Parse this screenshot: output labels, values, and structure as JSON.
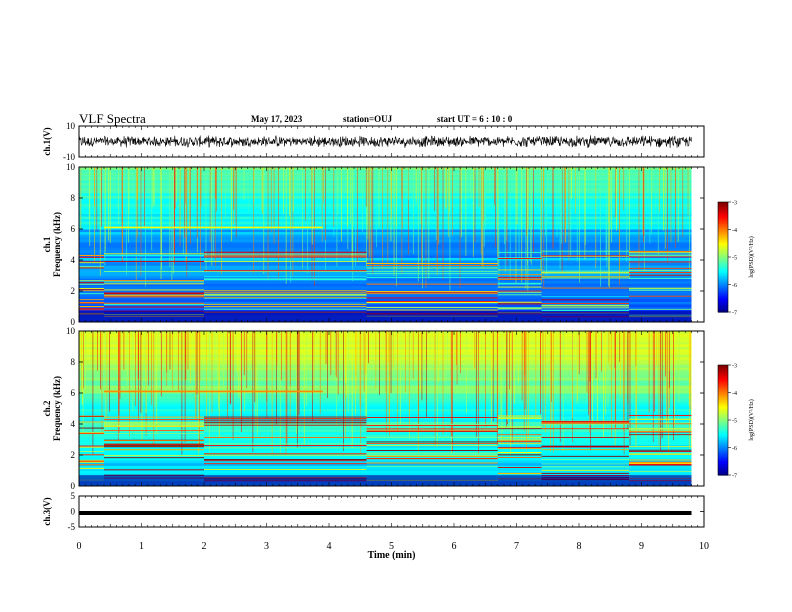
{
  "header": {
    "title": "VLF Spectra",
    "date": "May 17, 2023",
    "station": "station=OUJ",
    "start": "start  UT  =   6  :  10 : 0"
  },
  "chart_data": [
    {
      "type": "line",
      "panel": "ch1-waveform",
      "ylabel": "ch.1(V)",
      "ylim": [
        -10,
        10
      ],
      "yticks": [
        "10",
        "-10"
      ],
      "x": [
        0,
        0.5,
        1,
        1.5,
        2,
        2.5,
        3,
        3.5,
        4,
        4.5,
        5,
        5.5,
        6,
        6.5,
        7,
        7.5,
        8,
        8.5,
        9,
        9.5,
        9.8
      ],
      "y": [
        0,
        0,
        0,
        0,
        0,
        0,
        0,
        0,
        0,
        0,
        0,
        0,
        0,
        0,
        0,
        0,
        0,
        0,
        0,
        0,
        0
      ],
      "noise_amplitude": 3,
      "color": "#000000"
    },
    {
      "type": "heatmap",
      "panel": "ch1-spectrogram",
      "ylabel": "ch.1\nFrequency (kHz)",
      "ylim": [
        0,
        10
      ],
      "yticks": [
        "0",
        "2",
        "4",
        "6",
        "8",
        "10"
      ],
      "xlim": [
        0,
        10
      ],
      "data_extent_min": 9.8,
      "segments_min": [
        0,
        0.4,
        2,
        4.6,
        6.7,
        7.4,
        8.8
      ],
      "colorbar": {
        "label": "log(PSD)(V²/Hz)",
        "range": [
          -7,
          -3
        ],
        "ticks": [
          "-3",
          "-4",
          "-5",
          "-6",
          "-7"
        ]
      }
    },
    {
      "type": "heatmap",
      "panel": "ch2-spectrogram",
      "ylabel": "ch.2\nFrequency (kHz)",
      "ylim": [
        0,
        10
      ],
      "yticks": [
        "0",
        "2",
        "4",
        "6",
        "8",
        "10"
      ],
      "xlim": [
        0,
        10
      ],
      "data_extent_min": 9.8,
      "segments_min": [
        0,
        0.4,
        2,
        4.6,
        6.7,
        7.4,
        8.8
      ],
      "colorbar": {
        "label": "log(PSD)(V²/Hz)",
        "range": [
          -7,
          -3
        ],
        "ticks": [
          "-3",
          "-4",
          "-5",
          "-6",
          "-7"
        ]
      }
    },
    {
      "type": "line",
      "panel": "ch3-waveform",
      "ylabel": "ch.3(V)",
      "ylim": [
        -5,
        5
      ],
      "yticks": [
        "5",
        "0",
        "-5"
      ],
      "x": [
        0,
        9.8
      ],
      "y": [
        -0.5,
        -0.5
      ],
      "color": "#000000"
    }
  ],
  "xaxis": {
    "label": "Time  (min)",
    "ticks": [
      "0",
      "1",
      "2",
      "3",
      "4",
      "5",
      "6",
      "7",
      "8",
      "9",
      "10"
    ]
  }
}
